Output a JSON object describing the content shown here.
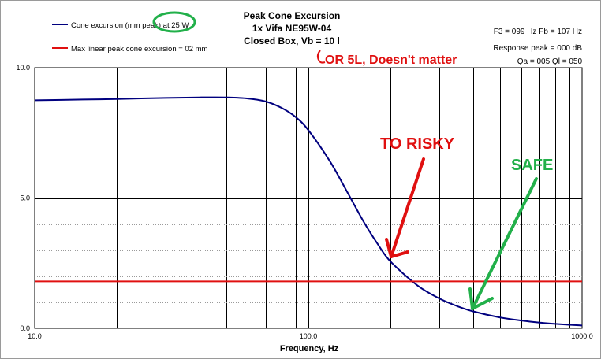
{
  "chart_data": {
    "type": "line",
    "title_lines": [
      "Peak Cone Excursion",
      "1x Vifa NE95W-04",
      "Closed Box, Vb = 10 l"
    ],
    "xlabel": "Frequency, Hz",
    "ylabel": "",
    "x_scale": "log",
    "xlim": [
      10,
      1000
    ],
    "ylim": [
      0,
      10
    ],
    "x_ticks": [
      "10.0",
      "100.0",
      "1000.0"
    ],
    "y_ticks": [
      "0.0",
      "5.0",
      "10.0"
    ],
    "grid": true,
    "legend": [
      {
        "label": "Cone excursion (mm peak) at 25 W",
        "color": "#00007f"
      },
      {
        "label": "Max linear peak cone excursion = 02 mm",
        "color": "#e01010"
      }
    ],
    "info_lines": [
      "F3 = 099 Hz  Fb = 107 Hz",
      "Response peak = 000 dB",
      "Qa = 005  Ql = 050"
    ],
    "series": [
      {
        "name": "Cone excursion (mm peak) at 25 W",
        "color": "#00007f",
        "x": [
          10,
          15,
          20,
          30,
          40,
          50,
          60,
          70,
          80,
          90,
          100,
          120,
          140,
          160,
          180,
          200,
          250,
          300,
          350,
          400,
          500,
          600,
          700,
          800,
          1000
        ],
        "y": [
          8.75,
          8.78,
          8.8,
          8.84,
          8.86,
          8.86,
          8.82,
          8.7,
          8.45,
          8.1,
          7.6,
          6.4,
          5.15,
          4.05,
          3.2,
          2.55,
          1.65,
          1.15,
          0.85,
          0.65,
          0.42,
          0.3,
          0.22,
          0.17,
          0.11
        ]
      },
      {
        "name": "Max linear peak cone excursion = 02 mm",
        "color": "#e01010",
        "x": [
          10,
          1000
        ],
        "y": [
          1.8,
          1.8
        ]
      }
    ],
    "annotations": [
      {
        "text": "OR 5L, Doesn't matter",
        "color": "#e01010"
      },
      {
        "text": "TO RISKY",
        "color": "#e01010"
      },
      {
        "text": "SAFE",
        "color": "#22b04a"
      }
    ]
  }
}
